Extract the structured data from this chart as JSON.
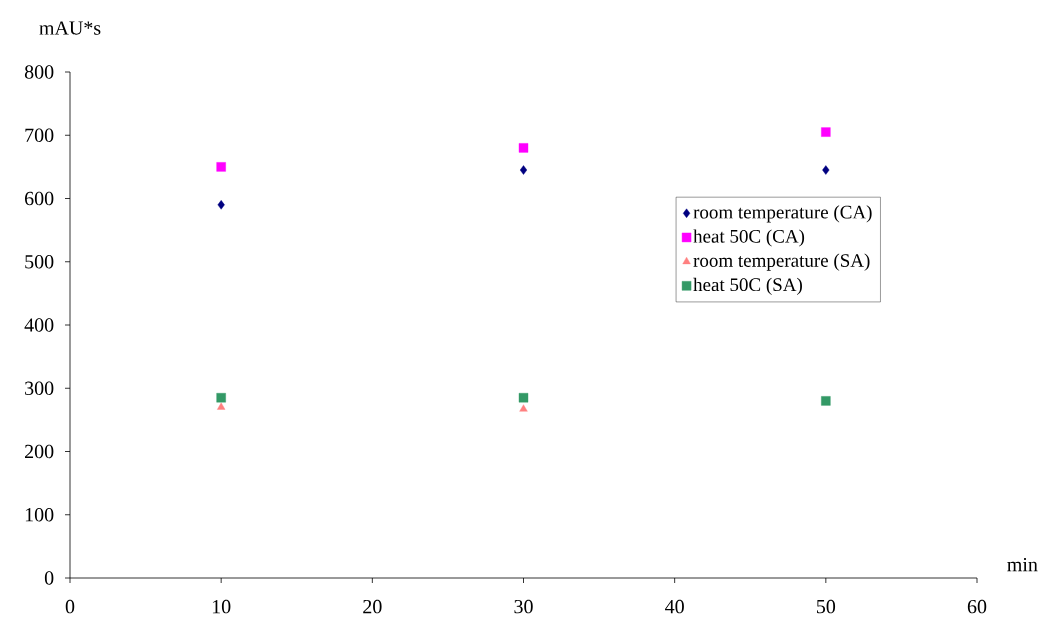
{
  "chart_data": {
    "type": "scatter",
    "xlabel": "min",
    "ylabel": "mAU*s",
    "x": [
      10,
      30,
      50
    ],
    "series": [
      {
        "name": "room temperature (CA)",
        "color": "#000080",
        "marker": "diamond",
        "values": [
          590,
          645,
          645
        ]
      },
      {
        "name": "heat 50C (CA)",
        "color": "#ff00ff",
        "marker": "square",
        "values": [
          650,
          680,
          705
        ]
      },
      {
        "name": "room temperature (SA)",
        "color": "#ff8080",
        "marker": "triangle",
        "values": [
          270,
          267,
          null
        ]
      },
      {
        "name": "heat 50C (SA)",
        "color": "#339966",
        "marker": "square",
        "values": [
          285,
          285,
          280
        ]
      }
    ],
    "xlim": [
      0,
      60
    ],
    "ylim": [
      0,
      800
    ],
    "xticks": [
      0,
      10,
      20,
      30,
      40,
      50,
      60
    ],
    "yticks": [
      0,
      100,
      200,
      300,
      400,
      500,
      600,
      700,
      800
    ],
    "grid": false,
    "legend": "right"
  }
}
